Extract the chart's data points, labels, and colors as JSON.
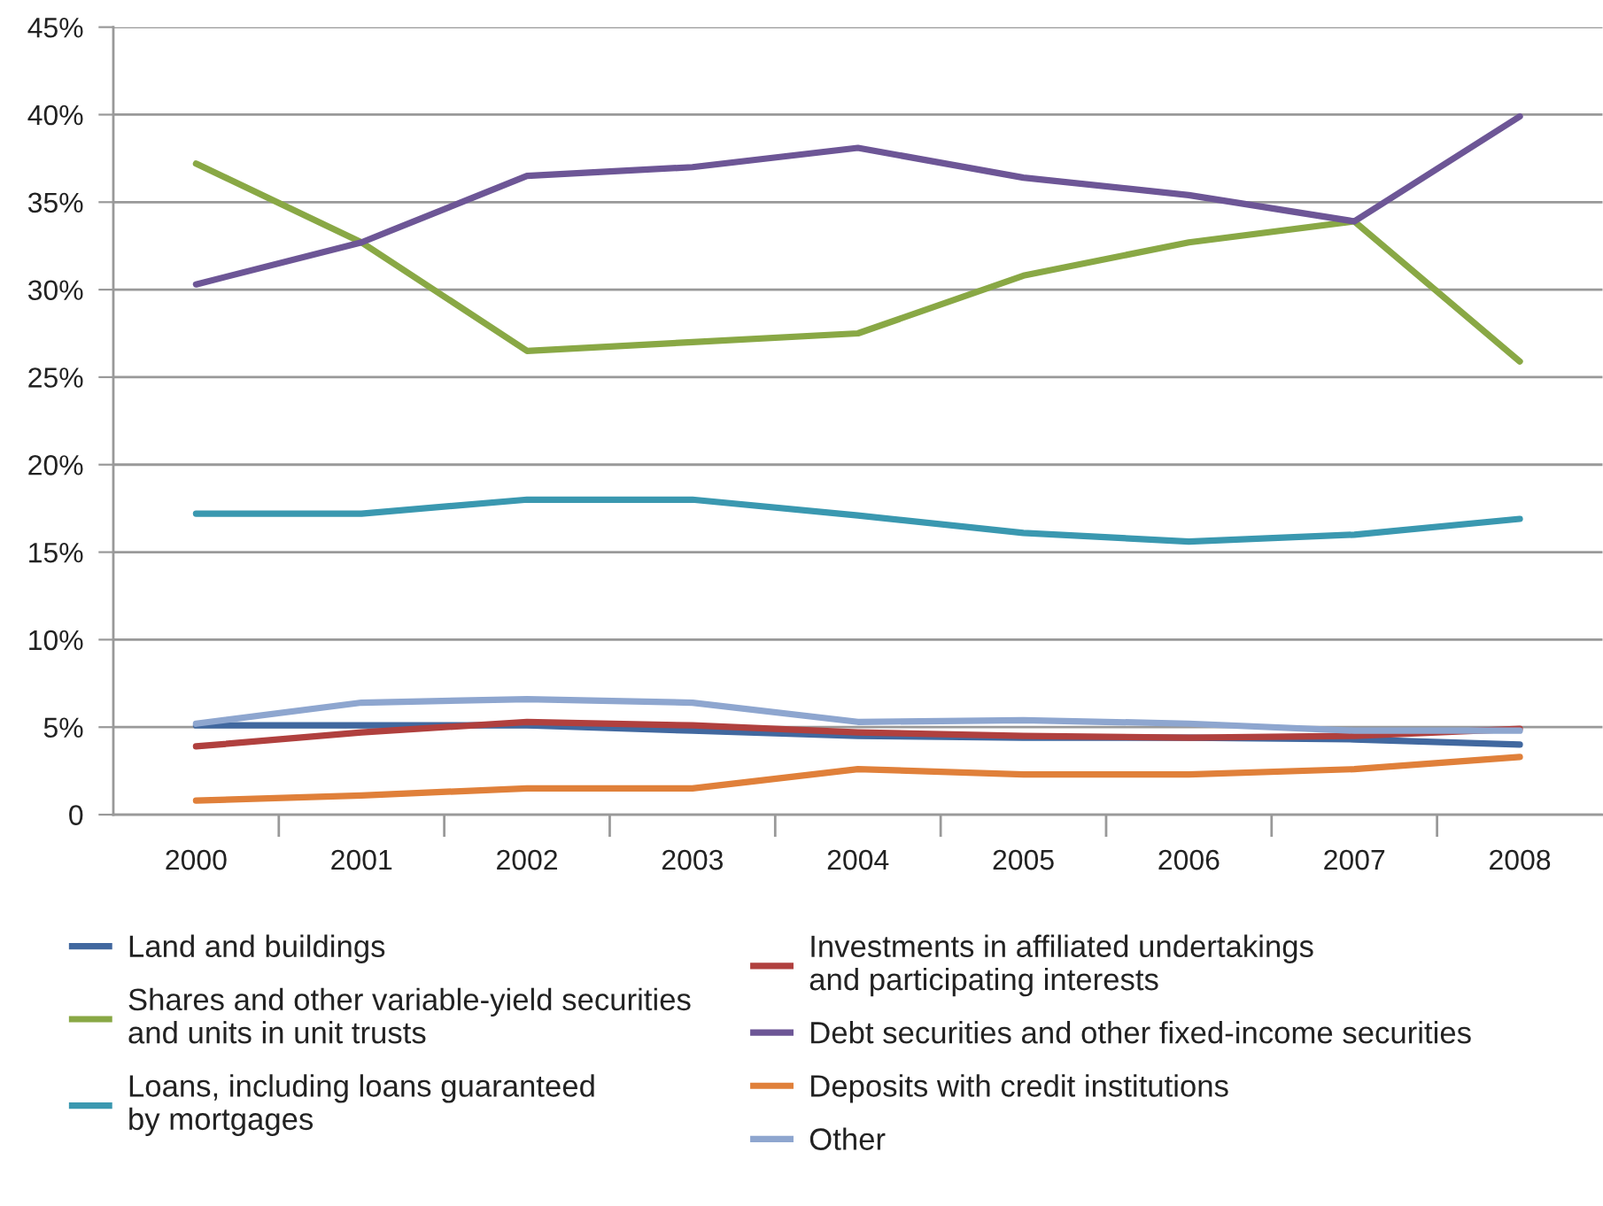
{
  "chart_data": {
    "type": "line",
    "categories": [
      "2000",
      "2001",
      "2002",
      "2003",
      "2004",
      "2005",
      "2006",
      "2007",
      "2008"
    ],
    "series": [
      {
        "name": "Land and buildings",
        "color": "#41689f",
        "values": [
          5.1,
          5.1,
          5.1,
          4.8,
          4.5,
          4.4,
          4.4,
          4.3,
          4.0
        ]
      },
      {
        "name": "Shares and other variable-yield securities\nand units in unit trusts",
        "color": "#89a845",
        "values": [
          37.2,
          32.7,
          26.5,
          27.0,
          27.5,
          30.8,
          32.7,
          33.9,
          25.9
        ]
      },
      {
        "name": "Loans, including loans guaranteed\nby mortgages",
        "color": "#3a98b0",
        "values": [
          17.2,
          17.2,
          18.0,
          18.0,
          17.1,
          16.1,
          15.6,
          16.0,
          16.9
        ]
      },
      {
        "name": "Investments in affiliated undertakings\nand participating interests",
        "color": "#b0403e",
        "values": [
          3.9,
          4.7,
          5.3,
          5.1,
          4.7,
          4.5,
          4.4,
          4.5,
          4.9
        ]
      },
      {
        "name": "Debt securities and other fixed-income securities",
        "color": "#6d5696",
        "values": [
          30.3,
          32.7,
          36.5,
          37.0,
          38.1,
          36.4,
          35.4,
          33.9,
          39.9
        ]
      },
      {
        "name": "Deposits with credit institutions",
        "color": "#e0803a",
        "values": [
          0.8,
          1.1,
          1.5,
          1.5,
          2.6,
          2.3,
          2.3,
          2.6,
          3.3
        ]
      },
      {
        "name": "Other",
        "color": "#8ea6cf",
        "values": [
          5.2,
          6.4,
          6.6,
          6.4,
          5.3,
          5.4,
          5.2,
          4.8,
          4.8
        ]
      }
    ],
    "ylim": [
      0,
      45
    ],
    "yticks": [
      0,
      {
        "value": 5,
        "label": "5%"
      },
      {
        "value": 10,
        "label": "10%"
      },
      {
        "value": 15,
        "label": "15%"
      },
      {
        "value": 20,
        "label": "20%"
      },
      {
        "value": 25,
        "label": "25%"
      },
      {
        "value": 30,
        "label": "30%"
      },
      {
        "value": 35,
        "label": "35%"
      },
      {
        "value": 40,
        "label": "40%"
      },
      {
        "value": 45,
        "label": "45%"
      }
    ],
    "grid": "y",
    "legend": "bottom",
    "marker": "none",
    "line_style": "solid"
  }
}
